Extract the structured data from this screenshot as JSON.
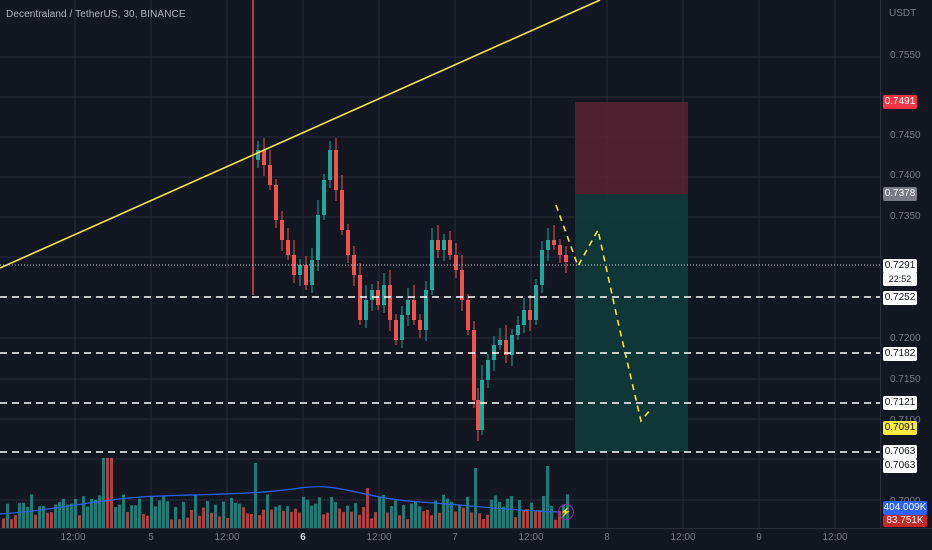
{
  "symbol": {
    "title": "Decentraland / TetherUS, 30, BINANCE"
  },
  "price_axis": {
    "quote": "USDT",
    "ticks": [
      "0.7550",
      "0.7450",
      "0.7400",
      "0.7350",
      "0.7200",
      "0.7150",
      "0.7100",
      "0.7000"
    ]
  },
  "price_tags": {
    "stop": "0.7491",
    "entry": "0.7378",
    "last": "0.7291",
    "countdown": "22:52",
    "level_1": "0.7252",
    "level_2": "0.7182",
    "level_3": "0.7121",
    "level_4": "0.7091",
    "target": "0.7063",
    "target_2": "0.7063",
    "volume": "404.009K",
    "volume_ma": "83.751K"
  },
  "time_axis": {
    "labels": [
      "12:00",
      "5",
      "12:00",
      "6",
      "12:00",
      "7",
      "12:00",
      "8",
      "12:00",
      "9",
      "12:00"
    ]
  },
  "colors": {
    "background": "#131722",
    "up": "#26a69a",
    "down": "#ef5350",
    "trendline": "#f5e63b",
    "dashed": "#ffffff",
    "stop_zone": "#5b2233",
    "target_zone": "#103b3a",
    "volume_ma": "#2962ff"
  },
  "icons": {
    "alert": "lightning-icon"
  }
}
